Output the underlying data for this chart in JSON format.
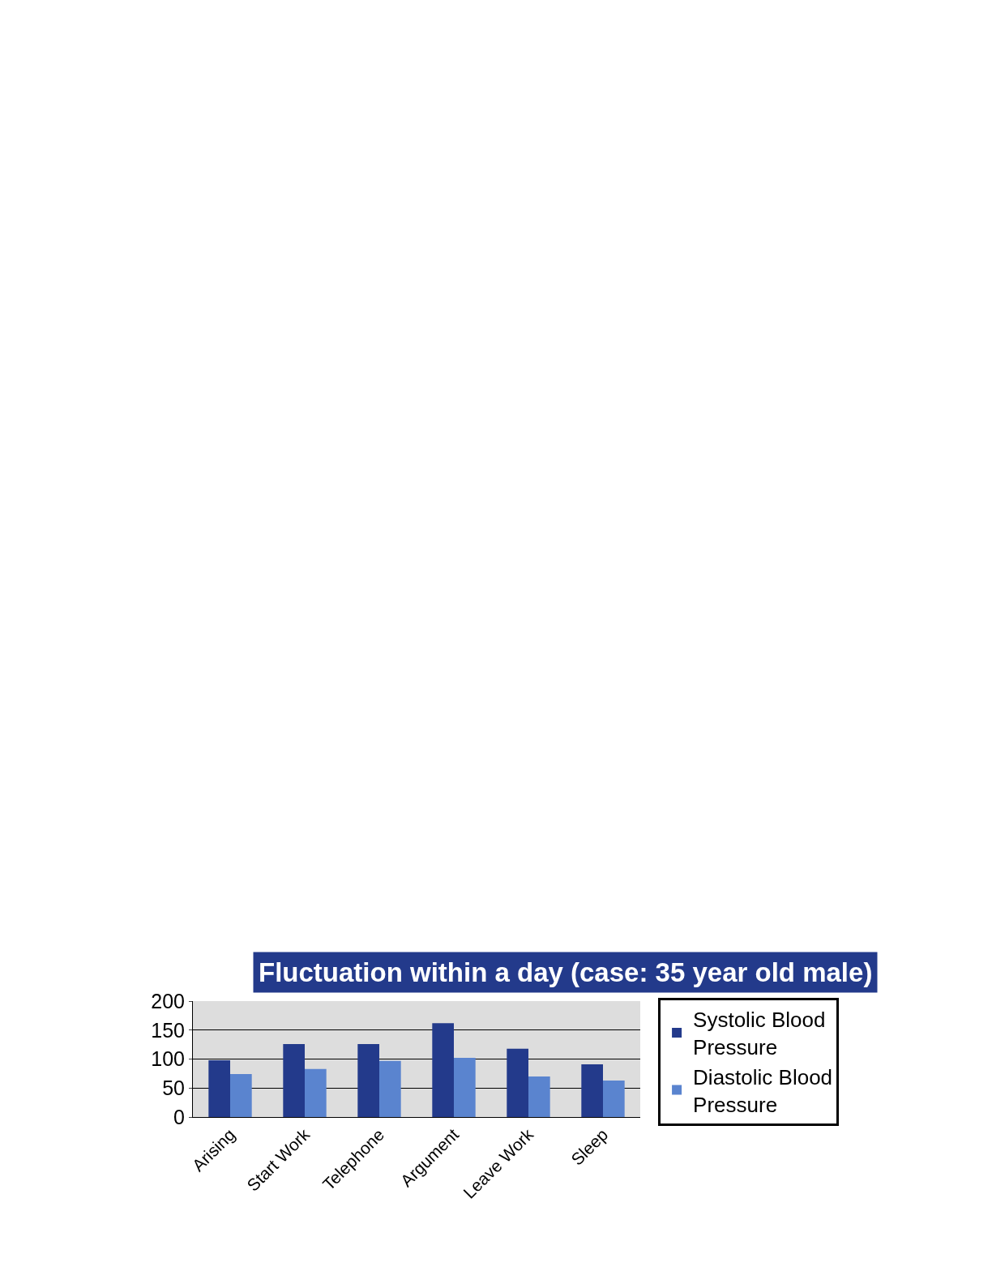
{
  "chart_data": {
    "type": "bar",
    "title": "Fluctuation within a day (case: 35 year old male)",
    "categories": [
      "Arising",
      "Start Work",
      "Telephone",
      "Argument",
      "Leave Work",
      "Sleep"
    ],
    "series": [
      {
        "name": "Systolic Blood Pressure",
        "color": "#233a8b",
        "values": [
          98,
          126,
          126,
          162,
          118,
          91
        ]
      },
      {
        "name": "Diastolic Blood Pressure",
        "color": "#5a84cf",
        "values": [
          74,
          83,
          97,
          102,
          70,
          63
        ]
      }
    ],
    "ylim": [
      0,
      200
    ],
    "yticks": [
      0,
      50,
      100,
      150,
      200
    ],
    "grid": "y",
    "legend": "right"
  }
}
